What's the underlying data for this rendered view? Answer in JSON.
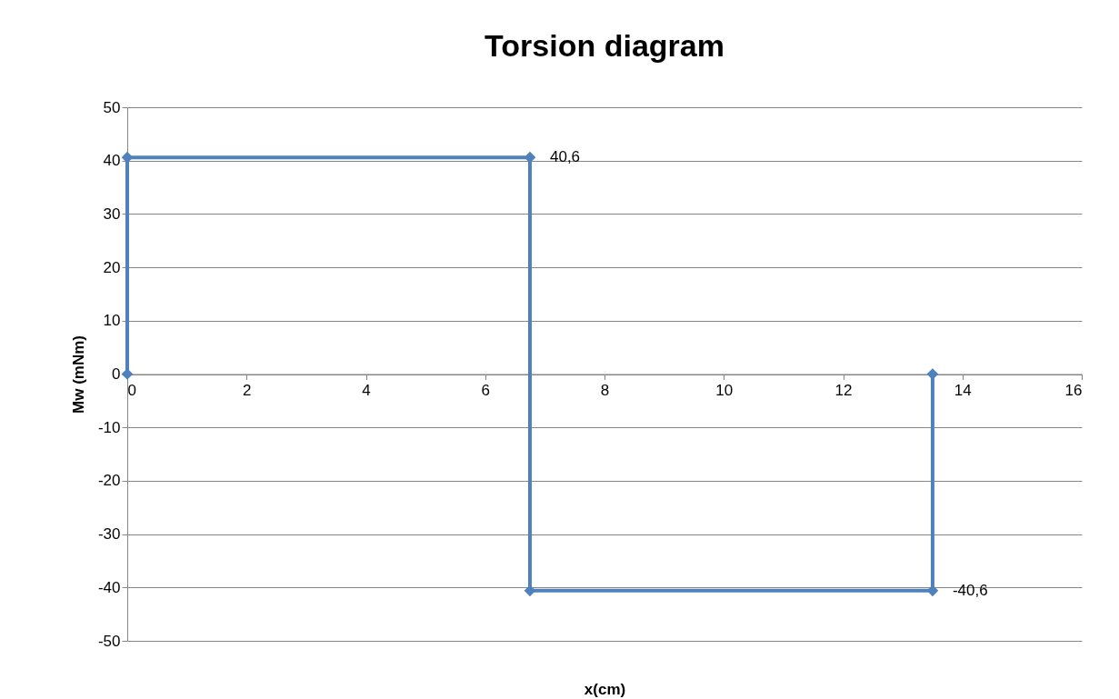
{
  "chart_data": {
    "type": "line",
    "title": "Torsion diagram",
    "xlabel": "x(cm)",
    "ylabel": "Mw (mNm)",
    "xlim": [
      0,
      16
    ],
    "xticks": [
      0,
      2,
      4,
      6,
      8,
      10,
      12,
      14,
      16
    ],
    "ylim": [
      -50,
      50
    ],
    "yticks": [
      -50,
      -40,
      -30,
      -20,
      -10,
      0,
      10,
      20,
      30,
      40,
      50
    ],
    "grid": "y",
    "marker": "diamond",
    "line_style": "solid",
    "series": [
      {
        "color": "#4f81bd",
        "x": [
          0,
          0,
          6.75,
          6.75,
          13.5,
          13.5
        ],
        "values": [
          0,
          40.6,
          40.6,
          -40.6,
          -40.6,
          0
        ],
        "value_labels": [
          null,
          null,
          "40,6",
          null,
          "-40,6",
          null
        ]
      }
    ]
  }
}
